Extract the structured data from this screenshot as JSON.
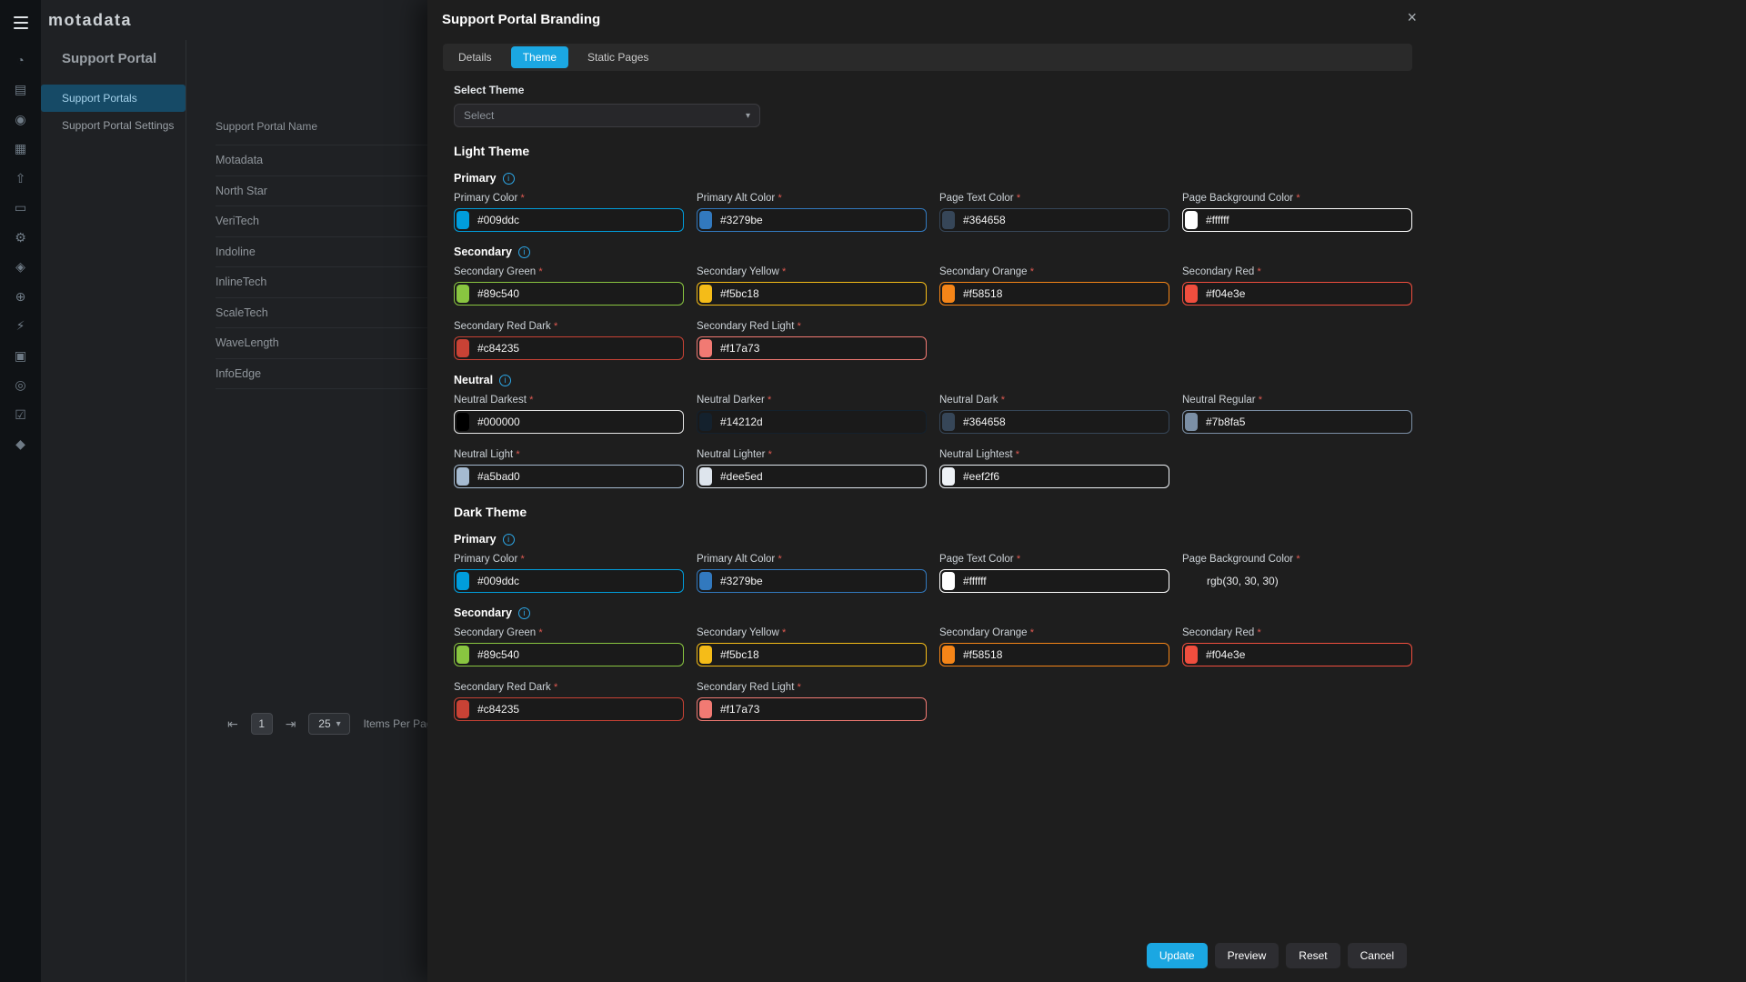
{
  "colors": {
    "accent": "#1ba7e2",
    "danger": "#e05a52",
    "drawer_bg": "#1e1e1e",
    "active_nav_bg": "#164a66"
  },
  "app": {
    "logo": "motadata"
  },
  "rail": {
    "icons": [
      {
        "name": "dashboard-icon",
        "glyph": "◔"
      },
      {
        "name": "ticket-icon",
        "glyph": "▤"
      },
      {
        "name": "users-icon",
        "glyph": "◉"
      },
      {
        "name": "knowledge-icon",
        "glyph": "▦"
      },
      {
        "name": "publish-icon",
        "glyph": "⇧"
      },
      {
        "name": "asset-icon",
        "glyph": "▭"
      },
      {
        "name": "settings-icon",
        "glyph": "⚙"
      },
      {
        "name": "package-icon",
        "glyph": "◈"
      },
      {
        "name": "topology-icon",
        "glyph": "⊕"
      },
      {
        "name": "automation-icon",
        "glyph": "⚡"
      },
      {
        "name": "report-icon",
        "glyph": "▣"
      },
      {
        "name": "contacts-icon",
        "glyph": "◎"
      },
      {
        "name": "tasks-icon",
        "glyph": "☑"
      },
      {
        "name": "admin-icon",
        "glyph": "◆"
      }
    ]
  },
  "sidebar": {
    "title": "Support Portal",
    "items": [
      {
        "label": "Support Portals",
        "active": true
      },
      {
        "label": "Support Portal Settings",
        "active": false
      }
    ]
  },
  "list": {
    "header": "Support Portal Name",
    "rows": [
      "Motadata",
      "North Star",
      "VeriTech",
      "Indoline",
      "InlineTech",
      "ScaleTech",
      "WaveLength",
      "InfoEdge"
    ],
    "pagination": {
      "first_glyph": "⇤",
      "last_glyph": "⇥",
      "page": "1",
      "page_size": "25",
      "chevron_glyph": "▾",
      "items_label": "Items Per Pag"
    }
  },
  "drawer": {
    "title": "Support Portal Branding",
    "close_glyph": "×",
    "tabs": [
      {
        "label": "Details",
        "active": false
      },
      {
        "label": "Theme",
        "active": true
      },
      {
        "label": "Static Pages",
        "active": false
      }
    ],
    "select_theme": {
      "label": "Select Theme",
      "value": "Select",
      "chevron_glyph": "▾"
    },
    "sections": [
      {
        "heading": "Light Theme",
        "groups": [
          {
            "name": "Primary",
            "fields": [
              {
                "label": "Primary Color",
                "value": "#009ddc",
                "color": "#009ddc"
              },
              {
                "label": "Primary Alt Color",
                "value": "#3279be",
                "color": "#3279be"
              },
              {
                "label": "Page Text Color",
                "value": "#364658",
                "color": "#364658"
              },
              {
                "label": "Page Background Color",
                "value": "#ffffff",
                "color": "#ffffff"
              }
            ]
          },
          {
            "name": "Secondary",
            "fields": [
              {
                "label": "Secondary Green",
                "value": "#89c540",
                "color": "#89c540"
              },
              {
                "label": "Secondary Yellow",
                "value": "#f5bc18",
                "color": "#f5bc18"
              },
              {
                "label": "Secondary Orange",
                "value": "#f58518",
                "color": "#f58518"
              },
              {
                "label": "Secondary Red",
                "value": "#f04e3e",
                "color": "#f04e3e"
              },
              {
                "label": "Secondary Red Dark",
                "value": "#c84235",
                "color": "#c84235"
              },
              {
                "label": "Secondary Red Light",
                "value": "#f17a73",
                "color": "#f17a73"
              }
            ]
          },
          {
            "name": "Neutral",
            "fields": [
              {
                "label": "Neutral Darkest",
                "value": "#000000",
                "color": "#000000"
              },
              {
                "label": "Neutral Darker",
                "value": "#14212d",
                "color": "#14212d"
              },
              {
                "label": "Neutral Dark",
                "value": "#364658",
                "color": "#364658"
              },
              {
                "label": "Neutral Regular",
                "value": "#7b8fa5",
                "color": "#7b8fa5"
              },
              {
                "label": "Neutral Light",
                "value": "#a5bad0",
                "color": "#a5bad0"
              },
              {
                "label": "Neutral Lighter",
                "value": "#dee5ed",
                "color": "#dee5ed"
              },
              {
                "label": "Neutral Lightest",
                "value": "#eef2f6",
                "color": "#eef2f6"
              }
            ]
          }
        ]
      },
      {
        "heading": "Dark Theme",
        "groups": [
          {
            "name": "Primary",
            "fields": [
              {
                "label": "Primary Color",
                "value": "#009ddc",
                "color": "#009ddc"
              },
              {
                "label": "Primary Alt Color",
                "value": "#3279be",
                "color": "#3279be"
              },
              {
                "label": "Page Text Color",
                "value": "#ffffff",
                "color": "#ffffff"
              },
              {
                "label": "Page Background Color",
                "value": "rgb(30, 30, 30)",
                "type": "text"
              }
            ]
          },
          {
            "name": "Secondary",
            "fields": [
              {
                "label": "Secondary Green",
                "value": "#89c540",
                "color": "#89c540"
              },
              {
                "label": "Secondary Yellow",
                "value": "#f5bc18",
                "color": "#f5bc18"
              },
              {
                "label": "Secondary Orange",
                "value": "#f58518",
                "color": "#f58518"
              },
              {
                "label": "Secondary Red",
                "value": "#f04e3e",
                "color": "#f04e3e"
              },
              {
                "label": "Secondary Red Dark",
                "value": "#c84235",
                "color": "#c84235"
              },
              {
                "label": "Secondary Red Light",
                "value": "#f17a73",
                "color": "#f17a73"
              }
            ]
          }
        ]
      }
    ],
    "footer_buttons": [
      {
        "label": "Update",
        "primary": true
      },
      {
        "label": "Preview",
        "primary": false
      },
      {
        "label": "Reset",
        "primary": false
      },
      {
        "label": "Cancel",
        "primary": false
      }
    ]
  }
}
